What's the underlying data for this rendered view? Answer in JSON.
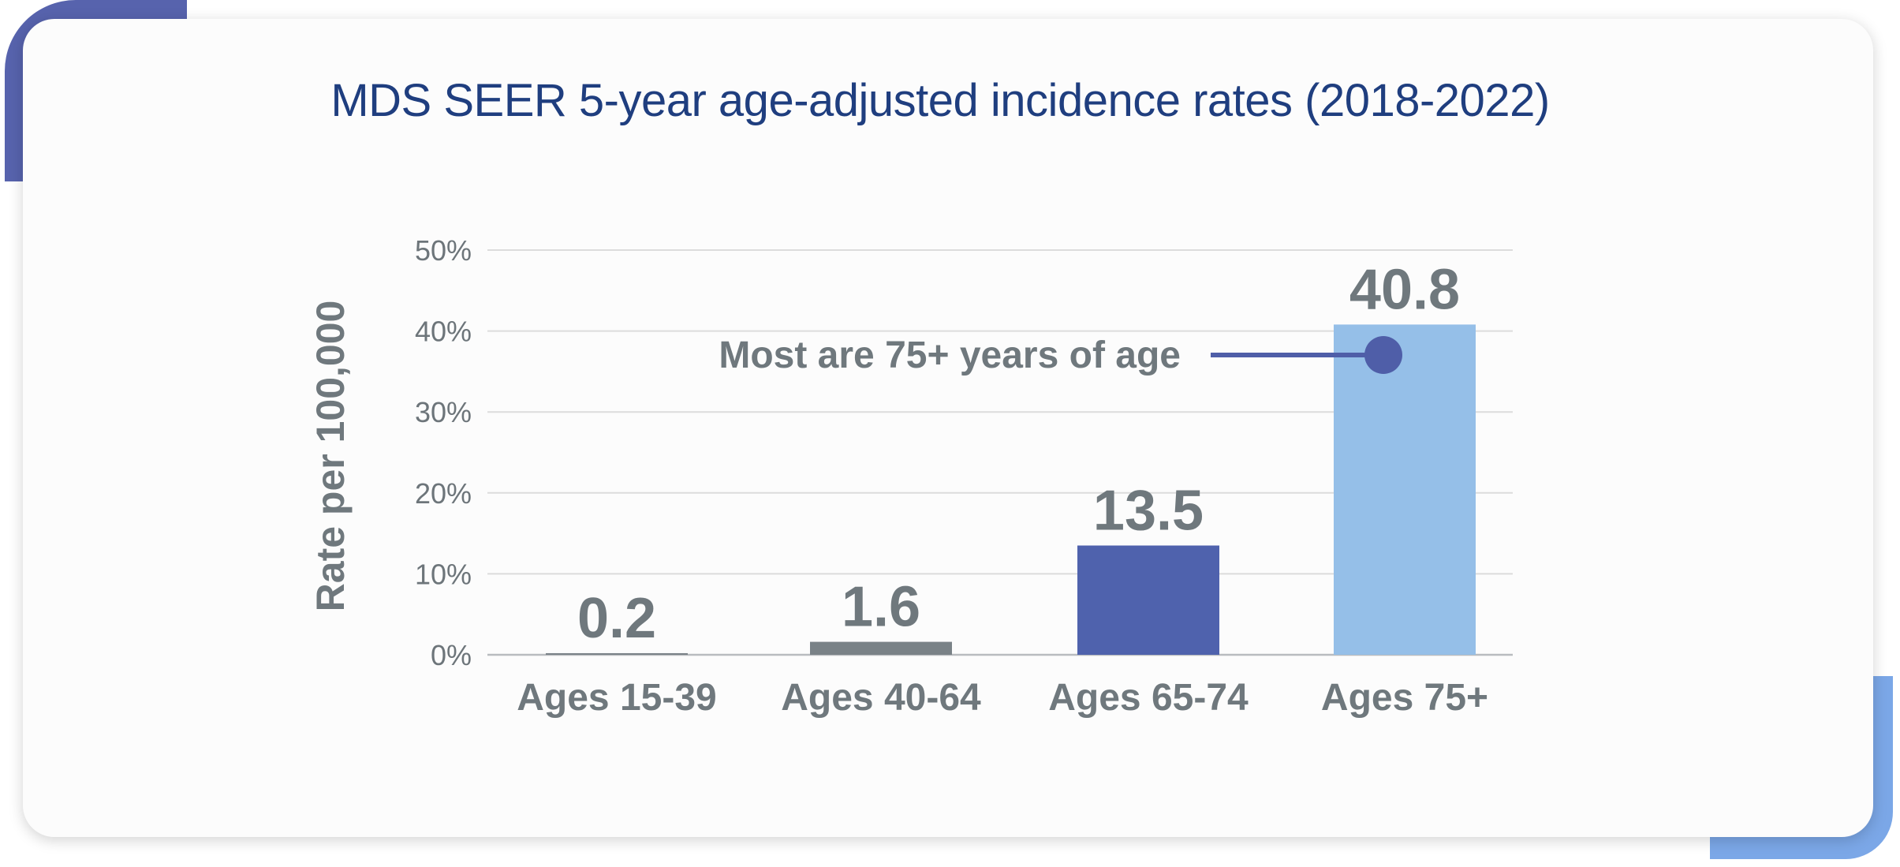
{
  "chart_data": {
    "type": "bar",
    "title": "MDS SEER 5-year age-adjusted incidence rates (2018-2022)",
    "xlabel": "",
    "ylabel": "Rate per 100,000",
    "ylim": [
      0,
      50
    ],
    "yticks": [
      "0%",
      "10%",
      "20%",
      "30%",
      "40%",
      "50%"
    ],
    "categories": [
      "Ages 15-39",
      "Ages 40-64",
      "Ages 65-74",
      "Ages 75+"
    ],
    "values": [
      0.2,
      1.6,
      13.5,
      40.8
    ],
    "value_labels": [
      "0.2",
      "1.6",
      "13.5",
      "40.8"
    ],
    "bar_colors": [
      "#7a8287",
      "#7a8287",
      "#4f62ad",
      "#95bfe8"
    ],
    "grid": true,
    "annotation": {
      "text": "Most are 75+ years of age",
      "target": "Ages 75+",
      "color": "#4f5ea8"
    }
  },
  "colors": {
    "title": "#1f3e7f",
    "axis_text": "#6d757a",
    "label_text": "#6f787d",
    "gridline": "#dcdcdc",
    "accent_top_left": "#5763ad",
    "accent_bottom_right": "#7ba7e7"
  }
}
